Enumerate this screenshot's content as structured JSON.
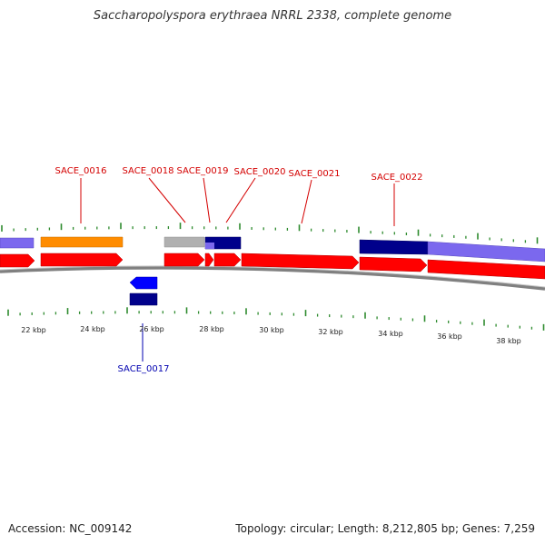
{
  "title": "Saccharopolyspora erythraea NRRL 2338, complete genome",
  "footer": {
    "accession_label": "Accession:",
    "accession": "NC_009142",
    "topology_label": "Topology:",
    "topology": "circular",
    "length_label": "Length:",
    "length": "8,212,805 bp",
    "genes_label": "Genes:",
    "genes": "7,259"
  },
  "colors": {
    "cds_red": "#ff0000",
    "cds_blue": "#0000ff",
    "purple": "#7b68ee",
    "navy": "#000080",
    "orange": "#ff8c00",
    "gray": "#b0b0b0",
    "backbone": "#808080",
    "tick_green": "#2e8b2e",
    "label_red": "#d40000",
    "label_blue": "#0000b0"
  },
  "scale_labels": [
    "22 kbp",
    "24 kbp",
    "26 kbp",
    "28 kbp",
    "30 kbp",
    "32 kbp",
    "34 kbp",
    "36 kbp",
    "38 kbp"
  ],
  "genes": [
    {
      "name": "SACE_0016",
      "color": "label_red"
    },
    {
      "name": "SACE_0017",
      "color": "label_blue"
    },
    {
      "name": "SACE_0018",
      "color": "label_red"
    },
    {
      "name": "SACE_0019",
      "color": "label_red"
    },
    {
      "name": "SACE_0020",
      "color": "label_red"
    },
    {
      "name": "SACE_0021",
      "color": "label_red"
    },
    {
      "name": "SACE_0022",
      "color": "label_red"
    }
  ]
}
